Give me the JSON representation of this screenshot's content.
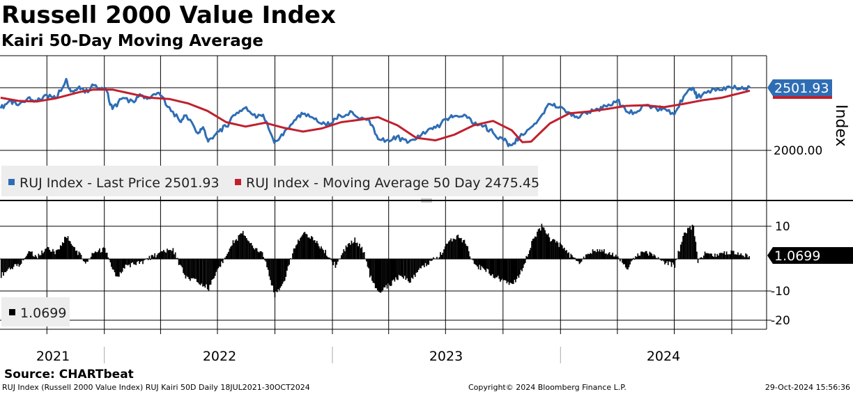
{
  "header": {
    "title": "Russell 2000 Value Index",
    "subtitle": "Kairi 50-Day Moving Average"
  },
  "colors": {
    "price": "#2E6DB4",
    "ma": "#C0202E",
    "kairi": "#000000",
    "price_label_bg": "#2E6DB4",
    "grid": "#000000"
  },
  "chart_data": [
    {
      "type": "line",
      "panel": "upper",
      "ylabel": "Index",
      "ytick_labels": [
        "2000.00"
      ],
      "ylim": [
        1640,
        2660
      ],
      "legend": [
        {
          "label": "RUJ Index - Last Price 2501.93",
          "color": "#2E6DB4"
        },
        {
          "label": "RUJ Index - Moving Average 50 Day 2475.45",
          "color": "#C0202E"
        }
      ],
      "last_value_label": "2501.93",
      "x_start": "2021-07-18",
      "x_end": "2024-10-30",
      "series": [
        {
          "name": "RUJ Index - Last Price",
          "color": "#2E6DB4",
          "dates": [
            "2021-07-19",
            "2021-08-02",
            "2021-08-16",
            "2021-09-01",
            "2021-09-15",
            "2021-10-01",
            "2021-10-15",
            "2021-11-01",
            "2021-11-08",
            "2021-11-22",
            "2021-12-01",
            "2021-12-15",
            "2022-01-03",
            "2022-01-14",
            "2022-01-28",
            "2022-02-15",
            "2022-03-01",
            "2022-03-15",
            "2022-03-29",
            "2022-04-15",
            "2022-05-02",
            "2022-05-12",
            "2022-05-31",
            "2022-06-08",
            "2022-06-16",
            "2022-07-01",
            "2022-07-15",
            "2022-08-01",
            "2022-08-16",
            "2022-09-01",
            "2022-09-12",
            "2022-09-30",
            "2022-10-14",
            "2022-11-01",
            "2022-11-15",
            "2022-12-01",
            "2022-12-15",
            "2022-12-30",
            "2023-01-13",
            "2023-02-02",
            "2023-02-15",
            "2023-03-01",
            "2023-03-15",
            "2023-03-31",
            "2023-04-14",
            "2023-05-01",
            "2023-05-15",
            "2023-06-01",
            "2023-06-15",
            "2023-07-03",
            "2023-07-14",
            "2023-07-31",
            "2023-08-15",
            "2023-09-01",
            "2023-09-15",
            "2023-10-02",
            "2023-10-13",
            "2023-10-27",
            "2023-11-15",
            "2023-12-01",
            "2023-12-15",
            "2023-12-29",
            "2024-01-16",
            "2024-02-01",
            "2024-02-15",
            "2024-03-01",
            "2024-03-15",
            "2024-04-01",
            "2024-04-15",
            "2024-05-01",
            "2024-05-15",
            "2024-06-03",
            "2024-06-14",
            "2024-07-01",
            "2024-07-16",
            "2024-07-31",
            "2024-08-07",
            "2024-08-15",
            "2024-09-03",
            "2024-09-16",
            "2024-10-01",
            "2024-10-15",
            "2024-10-30"
          ],
          "values": [
            2335,
            2395,
            2360,
            2420,
            2390,
            2440,
            2415,
            2570,
            2470,
            2510,
            2460,
            2520,
            2490,
            2330,
            2410,
            2395,
            2440,
            2415,
            2460,
            2345,
            2230,
            2280,
            2135,
            2185,
            2070,
            2150,
            2190,
            2300,
            2345,
            2260,
            2285,
            2060,
            2120,
            2240,
            2290,
            2260,
            2210,
            2215,
            2280,
            2305,
            2255,
            2240,
            2090,
            2085,
            2110,
            2060,
            2090,
            2150,
            2180,
            2250,
            2270,
            2285,
            2210,
            2195,
            2140,
            2080,
            2040,
            2100,
            2185,
            2275,
            2370,
            2340,
            2300,
            2265,
            2310,
            2330,
            2350,
            2400,
            2310,
            2300,
            2360,
            2330,
            2335,
            2285,
            2430,
            2500,
            2420,
            2445,
            2495,
            2480,
            2500,
            2490,
            2502
          ]
        },
        {
          "name": "RUJ Index - Moving Average 50 Day",
          "color": "#C0202E",
          "dates": [
            "2021-07-19",
            "2021-08-16",
            "2021-09-15",
            "2021-10-15",
            "2021-11-22",
            "2021-12-15",
            "2022-01-14",
            "2022-02-15",
            "2022-03-15",
            "2022-04-15",
            "2022-05-15",
            "2022-06-15",
            "2022-07-15",
            "2022-08-15",
            "2022-09-15",
            "2022-10-15",
            "2022-11-15",
            "2022-12-15",
            "2023-01-15",
            "2023-02-15",
            "2023-03-15",
            "2023-04-15",
            "2023-05-15",
            "2023-06-15",
            "2023-07-15",
            "2023-08-15",
            "2023-09-15",
            "2023-10-15",
            "2023-11-01",
            "2023-11-15",
            "2023-12-15",
            "2024-01-15",
            "2024-02-15",
            "2024-03-15",
            "2024-04-15",
            "2024-05-15",
            "2024-06-15",
            "2024-07-15",
            "2024-08-15",
            "2024-09-15",
            "2024-10-30"
          ],
          "values": [
            2420,
            2395,
            2390,
            2415,
            2465,
            2485,
            2485,
            2450,
            2420,
            2410,
            2375,
            2315,
            2225,
            2190,
            2220,
            2180,
            2150,
            2175,
            2225,
            2245,
            2265,
            2200,
            2100,
            2080,
            2125,
            2200,
            2235,
            2160,
            2065,
            2070,
            2215,
            2295,
            2310,
            2330,
            2355,
            2360,
            2345,
            2370,
            2400,
            2420,
            2476
          ]
        }
      ]
    },
    {
      "type": "bar",
      "panel": "lower",
      "ytick_labels": [
        "10",
        "-10",
        "-20"
      ],
      "ylim": [
        -25,
        15
      ],
      "legend": [
        {
          "label": "1.0699",
          "color": "#000000"
        }
      ],
      "last_value_label": "1.0699",
      "series": [
        {
          "name": "Kairi 50D",
          "dates": [
            "2021-07-19",
            "2021-08-01",
            "2021-08-15",
            "2021-09-01",
            "2021-09-15",
            "2021-10-01",
            "2021-10-15",
            "2021-11-01",
            "2021-11-10",
            "2021-12-01",
            "2021-12-15",
            "2022-01-01",
            "2022-01-20",
            "2022-02-05",
            "2022-03-01",
            "2022-03-20",
            "2022-04-05",
            "2022-04-20",
            "2022-05-01",
            "2022-05-12",
            "2022-06-01",
            "2022-06-16",
            "2022-07-05",
            "2022-07-25",
            "2022-08-10",
            "2022-08-25",
            "2022-09-10",
            "2022-09-30",
            "2022-10-14",
            "2022-11-01",
            "2022-11-15",
            "2022-12-01",
            "2022-12-20",
            "2023-01-05",
            "2023-01-20",
            "2023-02-05",
            "2023-02-20",
            "2023-03-01",
            "2023-03-15",
            "2023-04-01",
            "2023-04-20",
            "2023-05-05",
            "2023-05-20",
            "2023-06-05",
            "2023-06-20",
            "2023-07-05",
            "2023-07-20",
            "2023-08-01",
            "2023-08-15",
            "2023-09-01",
            "2023-09-15",
            "2023-10-01",
            "2023-10-15",
            "2023-10-27",
            "2023-11-15",
            "2023-12-01",
            "2023-12-15",
            "2024-01-01",
            "2024-01-15",
            "2024-02-01",
            "2024-02-15",
            "2024-03-01",
            "2024-03-15",
            "2024-04-01",
            "2024-04-15",
            "2024-05-01",
            "2024-05-15",
            "2024-06-01",
            "2024-06-15",
            "2024-07-01",
            "2024-07-16",
            "2024-07-31",
            "2024-08-07",
            "2024-08-20",
            "2024-09-05",
            "2024-09-20",
            "2024-10-05",
            "2024-10-15",
            "2024-10-30"
          ],
          "values": [
            -5,
            -3,
            -2,
            2,
            1,
            3,
            2,
            7,
            4,
            -1,
            2,
            3,
            -6,
            -2,
            -1,
            1,
            2,
            3,
            -2,
            -6,
            -7,
            -9,
            -2,
            5,
            8,
            4,
            2,
            -11,
            -7,
            4,
            8,
            6,
            2,
            -2,
            3,
            6,
            2,
            -5,
            -10,
            -8,
            -5,
            -7,
            -3,
            -1,
            1,
            5,
            7,
            5,
            -2,
            -3,
            -5,
            -7,
            -8,
            -5,
            5,
            10,
            6,
            4,
            1,
            -1,
            2,
            3,
            2,
            1,
            -3,
            1,
            2,
            1,
            -1,
            -2,
            8,
            10,
            -1,
            2,
            1,
            2,
            2,
            1,
            1.0699
          ]
        }
      ]
    }
  ],
  "xaxis": {
    "years": [
      "2021",
      "2022",
      "2023",
      "2024"
    ]
  },
  "footer": {
    "source": "Source: CHARTbeat",
    "left": "RUJ Index (Russell 2000 Value Index) RUJ Kairi 50D  Daily 18JUL2021-30OCT2024",
    "center": "Copyright© 2024 Bloomberg Finance L.P.",
    "right": "29-Oct-2024 15:56:36"
  }
}
